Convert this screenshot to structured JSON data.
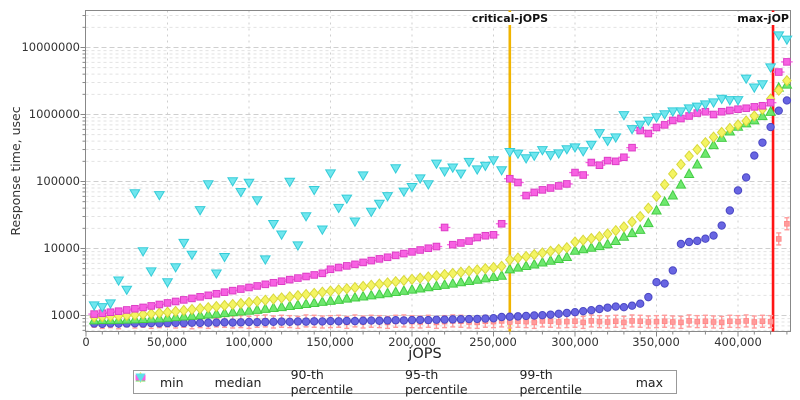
{
  "figure": {
    "background": "#ffffff",
    "frame_color": "#888888",
    "grid_major_color": "#cfcfcf",
    "grid_minor_color": "#e2e2e2",
    "text_color": "#333333"
  },
  "chart_data": {
    "type": "scatter",
    "title": "",
    "xlabel": "jOPS",
    "ylabel": "Response time, usec",
    "x_scale": "linear",
    "y_scale": "log",
    "xlim": [
      0,
      432000
    ],
    "ylim": [
      580,
      36000000
    ],
    "grid": true,
    "legend_position": "bottom",
    "x_ticks": [
      0,
      50000,
      100000,
      150000,
      200000,
      250000,
      300000,
      350000,
      400000
    ],
    "x_tick_labels": [
      "0",
      "50,000",
      "100,000",
      "150,000",
      "200,000",
      "250,000",
      "300,000",
      "350,000",
      "400,000"
    ],
    "x_minor_tick_step": 10000,
    "y_ticks": [
      1000,
      10000,
      100000,
      1000000,
      10000000
    ],
    "y_tick_labels": [
      "1000",
      "10000",
      "100000",
      "1000000",
      "10000000"
    ],
    "vlines": [
      {
        "label": "critical-jOPS",
        "x": 260000,
        "color": "#f0b400"
      },
      {
        "label": "max-jOP",
        "x": 421500,
        "color": "#ff1414"
      }
    ],
    "x_values": [
      5000,
      10000,
      15000,
      20000,
      25000,
      30000,
      35000,
      40000,
      45000,
      50000,
      55000,
      60000,
      65000,
      70000,
      75000,
      80000,
      85000,
      90000,
      95000,
      100000,
      105000,
      110000,
      115000,
      120000,
      125000,
      130000,
      135000,
      140000,
      145000,
      150000,
      155000,
      160000,
      165000,
      170000,
      175000,
      180000,
      185000,
      190000,
      195000,
      200000,
      205000,
      210000,
      215000,
      220000,
      225000,
      230000,
      235000,
      240000,
      245000,
      250000,
      255000,
      260000,
      265000,
      270000,
      275000,
      280000,
      285000,
      290000,
      295000,
      300000,
      305000,
      310000,
      315000,
      320000,
      325000,
      330000,
      335000,
      340000,
      345000,
      350000,
      355000,
      360000,
      365000,
      370000,
      375000,
      380000,
      385000,
      390000,
      395000,
      400000,
      405000,
      410000,
      415000,
      420000,
      425000,
      430000
    ],
    "series": [
      {
        "name": "min",
        "marker": "ibar",
        "color": "#fa5a5a",
        "fill": "#ff9b9b",
        "edge": "#ff8585",
        "values": [
          820,
          790,
          810,
          780,
          830,
          800,
          820,
          790,
          810,
          830,
          800,
          820,
          780,
          810,
          790,
          830,
          820,
          800,
          810,
          790,
          820,
          830,
          800,
          820,
          810,
          790,
          830,
          820,
          800,
          810,
          820,
          790,
          830,
          800,
          820,
          810,
          790,
          820,
          830,
          810,
          800,
          820,
          790,
          810,
          830,
          820,
          800,
          790,
          820,
          810,
          830,
          800,
          820,
          810,
          790,
          830,
          820,
          800,
          810,
          820,
          790,
          830,
          810,
          800,
          820,
          790,
          830,
          820,
          800,
          810,
          820,
          800,
          790,
          830,
          810,
          820,
          800,
          790,
          820,
          810,
          830,
          800,
          820,
          810,
          13900,
          23400
        ]
      },
      {
        "name": "median",
        "marker": "circle",
        "color": "#6865e2",
        "fill": "#6865e2",
        "edge": "#4a47c4",
        "values": [
          760,
          750,
          760,
          755,
          760,
          765,
          760,
          770,
          765,
          770,
          775,
          770,
          780,
          775,
          780,
          785,
          790,
          785,
          790,
          800,
          795,
          800,
          805,
          810,
          805,
          815,
          810,
          820,
          815,
          825,
          820,
          830,
          825,
          835,
          840,
          835,
          845,
          850,
          845,
          855,
          860,
          855,
          865,
          870,
          875,
          880,
          885,
          890,
          900,
          910,
          950,
          960,
          970,
          985,
          1000,
          1010,
          1030,
          1060,
          1090,
          1120,
          1160,
          1200,
          1250,
          1310,
          1360,
          1330,
          1400,
          1500,
          1880,
          3140,
          3000,
          4700,
          11700,
          12500,
          13000,
          14000,
          15600,
          22000,
          36900,
          73500,
          115000,
          244000,
          380000,
          650000,
          1140000,
          1620000
        ]
      },
      {
        "name": "90-th percentile",
        "marker": "triangle-up",
        "color": "#5fe45f",
        "fill": "#6ee86e",
        "edge": "#44cc44",
        "values": [
          850,
          860,
          855,
          865,
          870,
          880,
          890,
          900,
          910,
          930,
          950,
          970,
          990,
          1010,
          1040,
          1060,
          1090,
          1120,
          1150,
          1180,
          1220,
          1260,
          1300,
          1340,
          1390,
          1440,
          1490,
          1540,
          1600,
          1660,
          1720,
          1790,
          1860,
          1930,
          2000,
          2080,
          2160,
          2250,
          2340,
          2440,
          2540,
          2650,
          2760,
          2880,
          3000,
          3140,
          3280,
          3430,
          3590,
          3760,
          3940,
          4900,
          5200,
          5500,
          5800,
          6200,
          6600,
          7000,
          7500,
          9300,
          9800,
          10300,
          10900,
          11600,
          13000,
          15000,
          17000,
          19000,
          24000,
          37000,
          50000,
          62000,
          90000,
          130000,
          180000,
          260000,
          350000,
          450000,
          560000,
          660000,
          740000,
          820000,
          950000,
          1100000,
          2530000,
          2800000
        ]
      },
      {
        "name": "95-th percentile",
        "marker": "diamond",
        "color": "#ecec55",
        "fill": "#f4f463",
        "edge": "#d8d83c",
        "values": [
          950,
          960,
          970,
          985,
          1000,
          1020,
          1040,
          1060,
          1090,
          1120,
          1150,
          1190,
          1230,
          1270,
          1310,
          1360,
          1410,
          1460,
          1510,
          1570,
          1630,
          1690,
          1760,
          1830,
          1900,
          1980,
          2060,
          2140,
          2230,
          2320,
          2410,
          2510,
          2610,
          2720,
          2830,
          2950,
          3070,
          3200,
          3330,
          3470,
          3610,
          3760,
          3920,
          4080,
          4250,
          4430,
          4610,
          4800,
          5000,
          5210,
          5430,
          6800,
          7200,
          7600,
          8100,
          8600,
          9100,
          9700,
          10300,
          12500,
          13300,
          14100,
          15000,
          16500,
          18500,
          21000,
          25000,
          30000,
          40000,
          60000,
          90000,
          130000,
          180000,
          240000,
          300000,
          380000,
          460000,
          540000,
          620000,
          700000,
          800000,
          950000,
          1200000,
          1700000,
          2300000,
          3200000
        ]
      },
      {
        "name": "99-th percentile",
        "marker": "square",
        "color": "#f761e2",
        "fill": "#f761e2",
        "edge": "#dd3fc6",
        "values": [
          1050,
          1080,
          1120,
          1160,
          1210,
          1260,
          1320,
          1390,
          1460,
          1540,
          1620,
          1710,
          1800,
          1900,
          2000,
          2110,
          2230,
          2350,
          2480,
          2620,
          2760,
          2920,
          3080,
          3250,
          3430,
          3620,
          3820,
          4030,
          4260,
          4900,
          5200,
          5500,
          5800,
          6200,
          6600,
          7000,
          7400,
          7900,
          8400,
          8900,
          9500,
          10100,
          10700,
          20600,
          11400,
          12100,
          12900,
          14600,
          15500,
          16000,
          23400,
          110000,
          96600,
          61700,
          68700,
          75000,
          80000,
          86000,
          92000,
          136000,
          125000,
          192000,
          175000,
          205000,
          200000,
          230000,
          320000,
          577000,
          520000,
          640000,
          700000,
          815000,
          870000,
          950000,
          1050000,
          1100000,
          1000000,
          1100000,
          1150000,
          1200000,
          1240000,
          1300000,
          1350000,
          1500000,
          4300000,
          6100000
        ]
      },
      {
        "name": "max",
        "marker": "triangle-down",
        "color": "#5ee0e8",
        "fill": "#70e6ee",
        "edge": "#34ccd8",
        "values": [
          1400,
          1320,
          1500,
          3300,
          2400,
          66000,
          9000,
          4500,
          62000,
          3100,
          5200,
          12000,
          8000,
          37000,
          90000,
          4200,
          7400,
          100000,
          69000,
          95000,
          52000,
          6800,
          23000,
          16000,
          98000,
          11000,
          30000,
          74000,
          19000,
          131000,
          40000,
          55000,
          25000,
          122000,
          35000,
          46000,
          60000,
          156000,
          70000,
          82000,
          110000,
          90000,
          183000,
          140000,
          160000,
          130000,
          194000,
          150000,
          170000,
          205000,
          146000,
          273000,
          258000,
          220000,
          240000,
          291000,
          245000,
          260000,
          300000,
          320000,
          280000,
          350000,
          521000,
          400000,
          450000,
          969000,
          600000,
          700000,
          800000,
          900000,
          1000000,
          1100000,
          1100000,
          1220000,
          1300000,
          1400000,
          1500000,
          1700000,
          1620000,
          1620000,
          3400000,
          2500000,
          2800000,
          5000000,
          15000000,
          13000000
        ]
      }
    ]
  }
}
